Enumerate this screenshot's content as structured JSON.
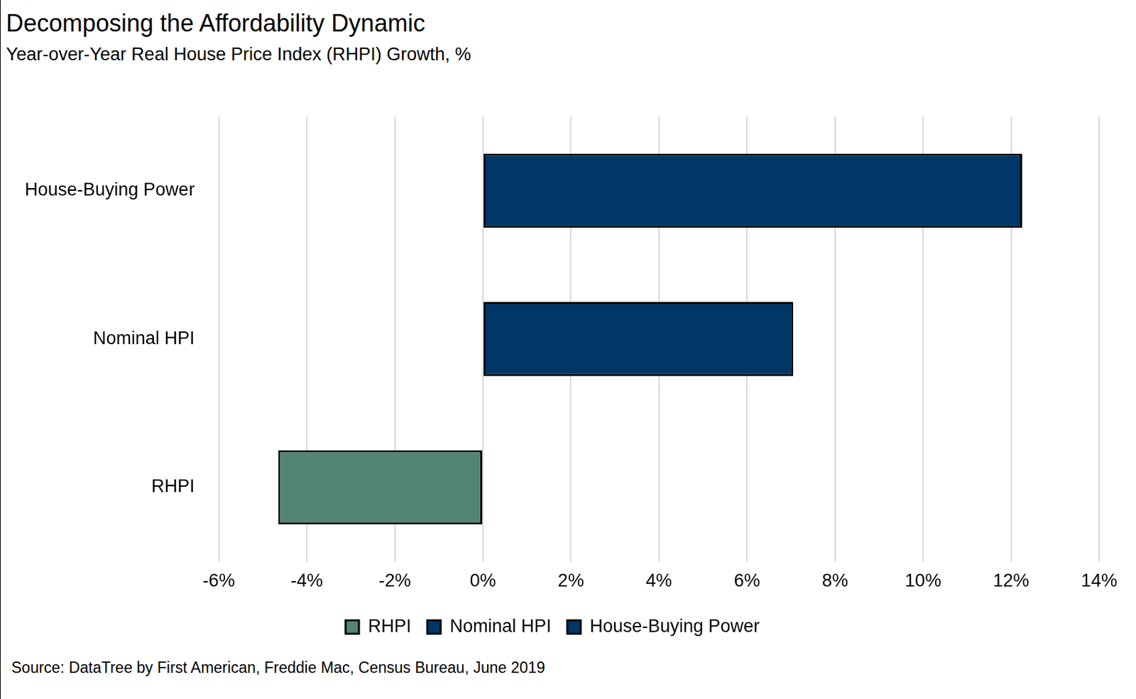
{
  "chart_data": {
    "type": "bar",
    "orientation": "horizontal",
    "title": "Decomposing the Affordability Dynamic",
    "subtitle": "Year-over-Year Real House Price Index (RHPI) Growth, %",
    "source": "Source: DataTree by First American, Freddie Mac, Census Bureau, June 2019",
    "categories": [
      "House-Buying Power",
      "Nominal HPI",
      "RHPI"
    ],
    "series": [
      {
        "name": "RHPI",
        "color": "#548572",
        "values": [
          null,
          null,
          -4.65
        ]
      },
      {
        "name": "Nominal HPI",
        "color": "#003767",
        "values": [
          null,
          7.05,
          null
        ]
      },
      {
        "name": "House-Buying Power",
        "color": "#003767",
        "values": [
          12.25,
          null,
          null
        ]
      }
    ],
    "xlim": [
      -6,
      14
    ],
    "xticks": [
      {
        "value": -6,
        "label": "-6%"
      },
      {
        "value": -4,
        "label": "-4%"
      },
      {
        "value": -2,
        "label": "-2%"
      },
      {
        "value": 0,
        "label": "0%"
      },
      {
        "value": 2,
        "label": "2%"
      },
      {
        "value": 4,
        "label": "4%"
      },
      {
        "value": 6,
        "label": "6%"
      },
      {
        "value": 8,
        "label": "8%"
      },
      {
        "value": 10,
        "label": "10%"
      },
      {
        "value": 12,
        "label": "12%"
      },
      {
        "value": 14,
        "label": "14%"
      }
    ],
    "grid": true,
    "legend": "bottom"
  }
}
